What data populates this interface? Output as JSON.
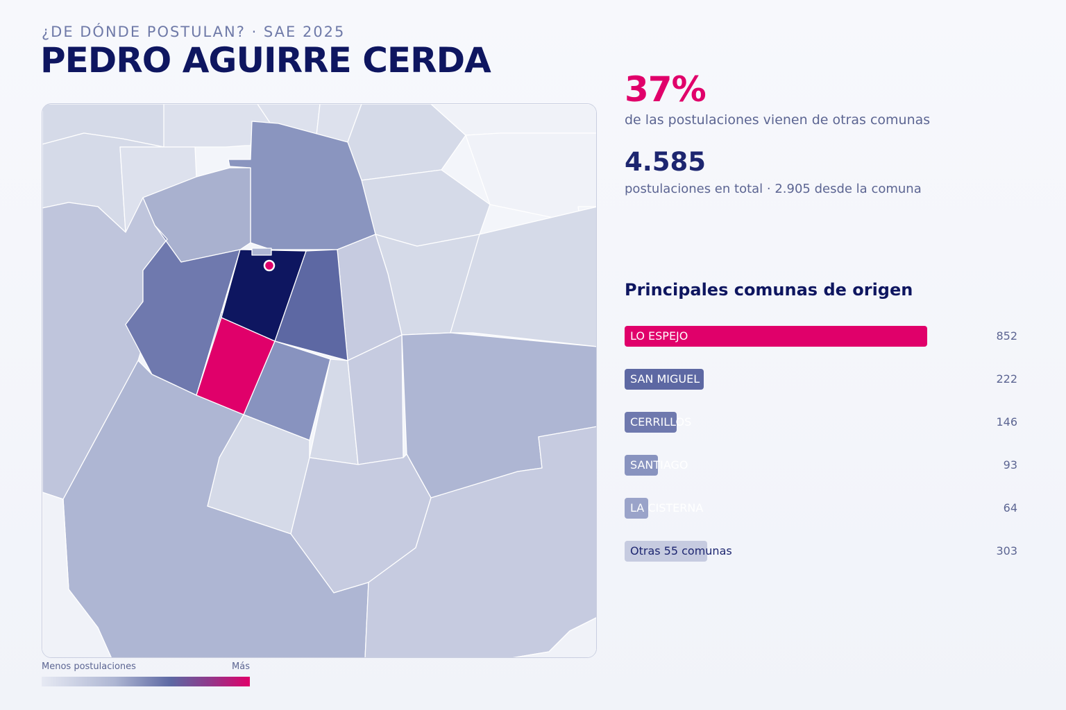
{
  "header": {
    "kicker": "¿DE DÓNDE POSTULAN? · SAE 2025",
    "title": "PEDRO AGUIRRE CERDA"
  },
  "stats": {
    "external_pct": "37%",
    "external_desc": "de las postulaciones vienen de otras comunas",
    "total": "4.585",
    "total_desc": "postulaciones en total · 2.905 desde la comuna"
  },
  "origins": {
    "title": "Principales comunas de origen",
    "max_value": 852,
    "items": [
      {
        "label": "LO ESPEJO",
        "value": 852,
        "display": "852",
        "color": "#e0006a",
        "label_dark": false
      },
      {
        "label": "SAN MIGUEL",
        "value": 222,
        "display": "222",
        "color": "#5d68a3",
        "label_dark": false
      },
      {
        "label": "CERRILLOS",
        "value": 146,
        "display": "146",
        "color": "#6f79ae",
        "label_dark": false
      },
      {
        "label": "SANTIAGO",
        "value": 93,
        "display": "93",
        "color": "#8893bf",
        "label_dark": false
      },
      {
        "label": "LA CISTERNA",
        "value": 64,
        "display": "64",
        "color": "#9aa3c9",
        "label_dark": false
      },
      {
        "label": "Otras 55 comunas",
        "value": 303,
        "display": "303",
        "color": "#c6cbe0",
        "label_dark": true,
        "fixed_fraction": 0.274
      }
    ]
  },
  "legend": {
    "low_label": "Menos postulaciones",
    "high_label": "Más",
    "gradient": [
      "#e6e9f3",
      "#aeb6d3",
      "#5d68a3",
      "#8e3a8c",
      "#e0006a"
    ]
  },
  "map": {
    "highlight_color": "#e0006a",
    "home_color": "#0e1660",
    "marker_icon": "location-dot-icon"
  }
}
